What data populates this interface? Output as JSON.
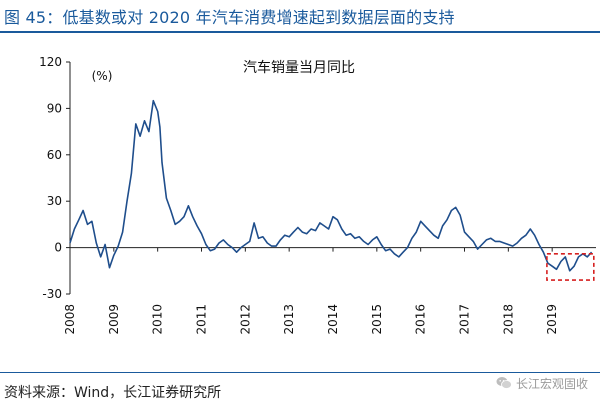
{
  "figure": {
    "title": "图 45：低基数或对 2020 年汽车消费增速起到数据层面的支持",
    "source": "资料来源：Wind，长江证券研究所",
    "watermark": "长江宏观固收"
  },
  "chart_data": {
    "type": "line",
    "title": "汽车销量当月同比",
    "ylabel": "(%)",
    "xlabel": "",
    "ylim": [
      -30,
      120
    ],
    "yticks": [
      -30,
      0,
      30,
      60,
      90,
      120
    ],
    "xlim": [
      2008.0,
      2020.0
    ],
    "xticks": [
      "2008",
      "2009",
      "2010",
      "2011",
      "2012",
      "2013",
      "2014",
      "2015",
      "2016",
      "2017",
      "2018",
      "2019"
    ],
    "grid": false,
    "line_color": "#1f4e8c",
    "highlight_color": "#d62020",
    "highlight_box": {
      "x": [
        2018.88,
        2019.95
      ],
      "y": [
        -21,
        -4
      ]
    },
    "series": [
      {
        "x": [
          2008.0,
          2008.1,
          2008.2,
          2008.3,
          2008.4,
          2008.5,
          2008.6,
          2008.7,
          2008.8,
          2008.9,
          2009.0,
          2009.1,
          2009.2,
          2009.3,
          2009.4,
          2009.5,
          2009.6,
          2009.7,
          2009.8,
          2009.9,
          2010.0,
          2010.05,
          2010.1,
          2010.2,
          2010.3,
          2010.4,
          2010.5,
          2010.6,
          2010.7,
          2010.8,
          2010.9,
          2011.0,
          2011.1,
          2011.2,
          2011.3,
          2011.4,
          2011.5,
          2011.6,
          2011.7,
          2011.8,
          2011.9,
          2012.0,
          2012.1,
          2012.2,
          2012.3,
          2012.4,
          2012.5,
          2012.6,
          2012.7,
          2012.8,
          2012.9,
          2013.0,
          2013.1,
          2013.2,
          2013.3,
          2013.4,
          2013.5,
          2013.6,
          2013.7,
          2013.8,
          2013.9,
          2014.0,
          2014.1,
          2014.2,
          2014.3,
          2014.4,
          2014.5,
          2014.6,
          2014.7,
          2014.8,
          2014.9,
          2015.0,
          2015.1,
          2015.2,
          2015.3,
          2015.4,
          2015.5,
          2015.6,
          2015.7,
          2015.8,
          2015.9,
          2016.0,
          2016.1,
          2016.2,
          2016.3,
          2016.4,
          2016.5,
          2016.6,
          2016.7,
          2016.8,
          2016.9,
          2017.0,
          2017.1,
          2017.2,
          2017.3,
          2017.4,
          2017.5,
          2017.6,
          2017.7,
          2017.8,
          2017.9,
          2018.0,
          2018.1,
          2018.2,
          2018.3,
          2018.4,
          2018.5,
          2018.6,
          2018.7,
          2018.8,
          2018.9,
          2019.0,
          2019.1,
          2019.2,
          2019.3,
          2019.4,
          2019.5,
          2019.6,
          2019.7,
          2019.8,
          2019.9
        ],
        "y": [
          3,
          12,
          18,
          24,
          15,
          17,
          3,
          -6,
          2,
          -13,
          -5,
          1,
          10,
          30,
          48,
          80,
          72,
          82,
          75,
          95,
          88,
          78,
          55,
          32,
          24,
          15,
          17,
          20,
          27,
          20,
          14,
          9,
          2,
          -2,
          -1,
          3,
          5,
          2,
          0,
          -3,
          0,
          2,
          4,
          16,
          6,
          7,
          3,
          1,
          1,
          5,
          8,
          7,
          10,
          13,
          10,
          9,
          12,
          11,
          16,
          14,
          12,
          20,
          18,
          12,
          8,
          9,
          6,
          7,
          4,
          2,
          5,
          7,
          2,
          -2,
          -1,
          -4,
          -6,
          -3,
          0,
          6,
          10,
          17,
          14,
          11,
          8,
          6,
          14,
          18,
          24,
          26,
          21,
          10,
          7,
          4,
          -1,
          2,
          5,
          6,
          4,
          4,
          3,
          2,
          1,
          3,
          6,
          8,
          12,
          8,
          2,
          -3,
          -10,
          -12,
          -14,
          -9,
          -6,
          -15,
          -12,
          -6,
          -4,
          -6,
          -3
        ]
      }
    ]
  }
}
